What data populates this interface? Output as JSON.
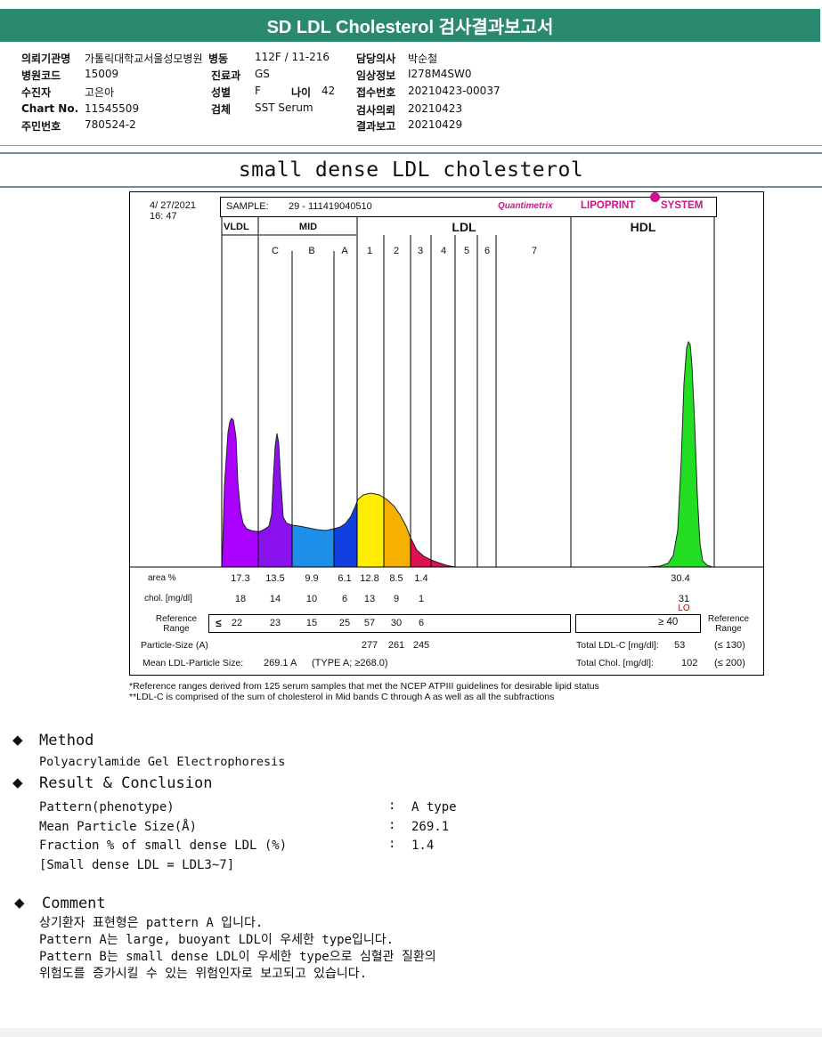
{
  "header": {
    "title": "SD LDL Cholesterol 검사결과보고서"
  },
  "patient_info": {
    "hospital_label": "의뢰기관명",
    "hospital_value": "가톨릭대학교서울성모병원",
    "ward_label": "병동",
    "ward_value": "112F / 11-216",
    "doctor_label": "담당의사",
    "doctor_value": "박순철",
    "hospital_code_label": "병원코드",
    "hospital_code_value": "15009",
    "dept_label": "진료과",
    "dept_value": "GS",
    "clinical_label": "임상정보",
    "clinical_value": "I278M4SW0",
    "patient_label": "수진자",
    "patient_value": "고은아",
    "sex_label": "성별",
    "sex_value": "F",
    "age_label": "나이",
    "age_value": "42",
    "receipt_label": "접수번호",
    "receipt_value": "20210423-00037",
    "chart_label": "Chart No.",
    "chart_value": "11545509",
    "specimen_label": "검체",
    "specimen_value": "SST Serum",
    "request_label": "검사의뢰",
    "request_value": "20210423",
    "id_label": "주민번호",
    "id_value": "780524-2",
    "result_label": "결과보고",
    "result_value": "20210429"
  },
  "section_title": "small dense LDL cholesterol",
  "report": {
    "date": "4/ 27/2021",
    "time": "16: 47",
    "sample_label": "SAMPLE:",
    "sample_value": "29 - 111419040510",
    "brand_prefix": "Quantimetrix",
    "brand_name": "LIPOPRINT",
    "brand_suffix": "SYSTEM",
    "groups": {
      "vldl": "VLDL",
      "mid": "MID",
      "ldl": "LDL",
      "hdl": "HDL"
    },
    "bands": [
      "C",
      "B",
      "A",
      "1",
      "2",
      "3",
      "4",
      "5",
      "6",
      "7"
    ],
    "area_label": "area %",
    "area_values": [
      "17.3",
      "13.5",
      "9.9",
      "6.1",
      "12.8",
      "8.5",
      "1.4"
    ],
    "hdl_area": "30.4",
    "chol_label": "chol. [mg/dl]",
    "chol_values": [
      "18",
      "14",
      "10",
      "6",
      "13",
      "9",
      "1"
    ],
    "hdl_chol": "31",
    "hdl_flag": "LO",
    "ref_label_1": "Reference",
    "ref_label_2": "Range",
    "ref_le": "≤",
    "ref_values": [
      "22",
      "23",
      "15",
      "25",
      "57",
      "30",
      "6"
    ],
    "hdl_ref": "≥ 40",
    "particle_size_label": "Particle-Size (A)",
    "particle_sizes": [
      "277",
      "261",
      "245"
    ],
    "mean_label": "Mean LDL-Particle Size:",
    "mean_value": "269.1 A",
    "mean_type": "(TYPE A; ≥268.0)",
    "total_ldl_label": "Total LDL-C [mg/dl]:",
    "total_ldl_value": "53",
    "total_ldl_ref": "(≤ 130)",
    "total_chol_label": "Total Chol. [mg/dl]:",
    "total_chol_value": "102",
    "total_chol_ref": "(≤ 200)"
  },
  "notes": [
    "*Reference ranges derived from 125 serum samples that met the NCEP ATPIII guidelines for desirable lipid status",
    "**LDL-C is comprised of the sum of cholesterol in Mid bands C through A as well as all the subfractions"
  ],
  "method": {
    "heading": "Method",
    "text": "Polyacrylamide Gel Electrophoresis"
  },
  "result": {
    "heading": "Result & Conclusion",
    "rows": [
      {
        "label": "Pattern(phenotype)",
        "value": "A type"
      },
      {
        "label": "Mean Particle Size(Å)",
        "value": "269.1"
      },
      {
        "label": "Fraction % of small dense LDL (%)",
        "value": "1.4"
      }
    ],
    "note": "[Small dense LDL = LDL3~7]",
    "colon": ":"
  },
  "comment": {
    "heading": "Comment",
    "lines": [
      "상기환자 표현형은 pattern A 입니다.",
      "Pattern A는 large, buoyant LDL이 우세한 type입니다.",
      "Pattern B는 small dense LDL이 우세한 type으로 심혈관 질환의",
      "위험도를 증가시킬 수 있는 위험인자로 보고되고 있습니다."
    ]
  },
  "colors": {
    "header_bg": "#2a8a6f",
    "brand": "#d0108a",
    "hdl_peak": "#22dd22",
    "lo_flag": "#cc0000"
  }
}
